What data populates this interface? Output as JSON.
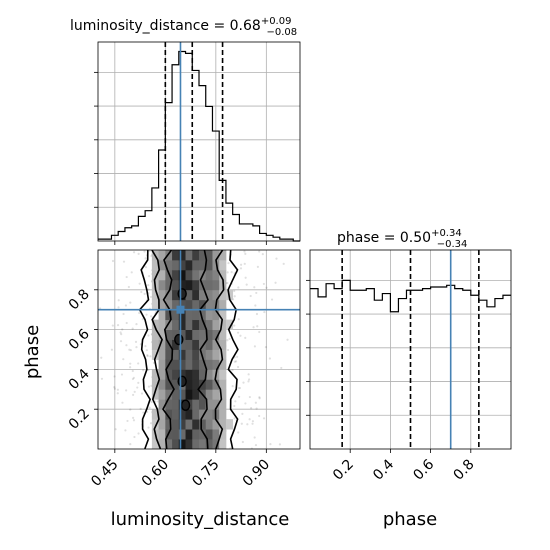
{
  "chart_data": [
    {
      "type": "histogram",
      "panel": "luminosity_distance marginal",
      "title": {
        "main": "luminosity_distance = 0.68",
        "sup": "+0.09",
        "sub": "−0.08"
      },
      "xlim": [
        0.4,
        1.0
      ],
      "grid": true,
      "bin_edges": [
        0.4,
        0.42,
        0.44,
        0.46,
        0.48,
        0.5,
        0.52,
        0.54,
        0.56,
        0.58,
        0.6,
        0.62,
        0.64,
        0.66,
        0.68,
        0.7,
        0.72,
        0.74,
        0.76,
        0.78,
        0.8,
        0.82,
        0.84,
        0.86,
        0.88,
        0.9,
        0.92,
        0.94,
        0.96,
        0.98,
        1.0
      ],
      "counts": [
        0.01,
        0.01,
        0.03,
        0.05,
        0.07,
        0.08,
        0.13,
        0.16,
        0.28,
        0.48,
        0.73,
        0.93,
        1.0,
        0.99,
        0.9,
        0.82,
        0.71,
        0.58,
        0.32,
        0.2,
        0.14,
        0.09,
        0.09,
        0.08,
        0.04,
        0.03,
        0.02,
        0.01,
        0.01,
        0.0
      ],
      "quantile_lines": [
        0.6,
        0.68,
        0.77
      ],
      "truth": 0.645,
      "line_color": "#000000",
      "truth_color": "#4682b4"
    },
    {
      "type": "histogram",
      "panel": "phase marginal",
      "title": {
        "main": "phase = 0.50",
        "sup": "+0.34",
        "sub": "−0.34"
      },
      "xlim": [
        0.0,
        1.0
      ],
      "xticks": [
        "0.2",
        "0.4",
        "0.6",
        "0.8"
      ],
      "xlabel": "phase",
      "grid": true,
      "bin_edges": [
        0.0,
        0.04,
        0.08,
        0.12,
        0.16,
        0.2,
        0.24,
        0.28,
        0.32,
        0.36,
        0.4,
        0.44,
        0.48,
        0.52,
        0.56,
        0.6,
        0.64,
        0.68,
        0.72,
        0.76,
        0.8,
        0.84,
        0.88,
        0.92,
        0.96,
        1.0
      ],
      "counts": [
        0.97,
        0.92,
        1.0,
        0.97,
        1.02,
        0.96,
        0.96,
        0.97,
        0.9,
        0.94,
        0.83,
        0.91,
        0.96,
        0.96,
        0.97,
        0.98,
        0.98,
        0.99,
        0.97,
        0.96,
        0.93,
        0.9,
        0.86,
        0.91,
        0.93
      ],
      "quantile_lines": [
        0.16,
        0.5,
        0.84
      ],
      "truth": 0.7,
      "line_color": "#000000",
      "truth_color": "#4682b4"
    },
    {
      "type": "heatmap",
      "panel": "2D posterior: luminosity_distance vs phase",
      "xlabel": "luminosity_distance",
      "ylabel": "phase",
      "xlim": [
        0.4,
        1.0
      ],
      "ylim": [
        0.0,
        1.0
      ],
      "xticks": [
        "0.45",
        "0.60",
        "0.75",
        "0.90"
      ],
      "yticks": [
        "0.2",
        "0.4",
        "0.6",
        "0.8"
      ],
      "x_bins": [
        0.4,
        0.42,
        0.44,
        0.46,
        0.48,
        0.5,
        0.52,
        0.54,
        0.56,
        0.58,
        0.6,
        0.62,
        0.64,
        0.66,
        0.68,
        0.7,
        0.72,
        0.74,
        0.76,
        0.78,
        0.8,
        0.82,
        0.84,
        0.86,
        0.88,
        0.9,
        0.92,
        0.94,
        0.96,
        0.98,
        1.0
      ],
      "density_profile": [
        0.01,
        0.01,
        0.03,
        0.05,
        0.07,
        0.08,
        0.13,
        0.16,
        0.28,
        0.48,
        0.73,
        0.93,
        1.0,
        0.99,
        0.9,
        0.82,
        0.71,
        0.58,
        0.32,
        0.2,
        0.14,
        0.09,
        0.09,
        0.08,
        0.04,
        0.03,
        0.02,
        0.01,
        0.01,
        0.0
      ],
      "contour_x_bounds": [
        {
          "level": "outer",
          "left": 0.54,
          "right": 0.8
        },
        {
          "level": "middle",
          "left": 0.575,
          "right": 0.76
        },
        {
          "level": "inner",
          "left": 0.61,
          "right": 0.715
        }
      ],
      "truth": {
        "x": 0.645,
        "y": 0.7
      },
      "truth_color": "#4682b4",
      "grid": true
    }
  ]
}
